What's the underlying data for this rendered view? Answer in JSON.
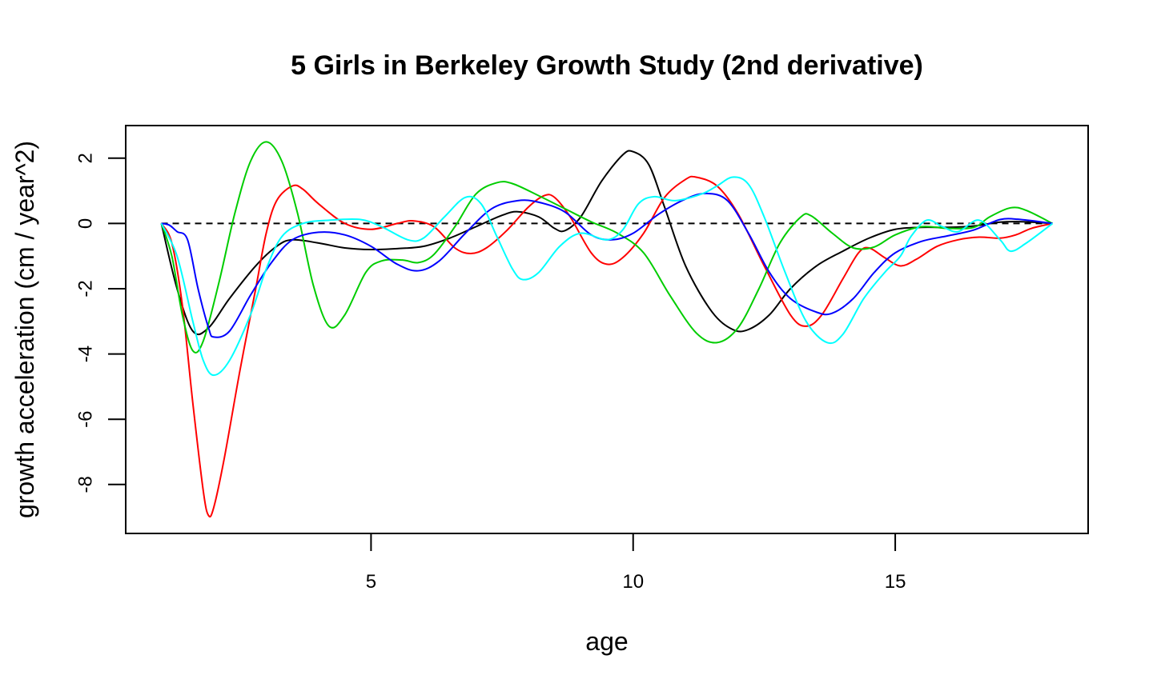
{
  "chart_data": {
    "type": "line",
    "title": "5 Girls in Berkeley Growth Study (2nd derivative)",
    "xlabel": "age",
    "ylabel": "growth acceleration (cm / year^2)",
    "xlim": [
      0.32,
      18.68
    ],
    "ylim": [
      -9.5,
      3.0
    ],
    "x_ticks": [
      5,
      10,
      15
    ],
    "x_tick_labels": [
      "5",
      "10",
      "15"
    ],
    "y_ticks": [
      -8,
      -6,
      -4,
      -2,
      0,
      2
    ],
    "y_tick_labels": [
      "-8",
      "-6",
      "-4",
      "-2",
      "0",
      "2"
    ],
    "grid": false,
    "legend": "none",
    "reference_line": {
      "y": 0,
      "style": "dashed",
      "color": "#000000"
    },
    "series": [
      {
        "color": "#000000",
        "points": [
          [
            1,
            0
          ],
          [
            1.3,
            -2
          ],
          [
            1.6,
            -3.3
          ],
          [
            1.9,
            -3.2
          ],
          [
            2.3,
            -2.3
          ],
          [
            2.8,
            -1.3
          ],
          [
            3.2,
            -0.7
          ],
          [
            3.5,
            -0.5
          ],
          [
            4.0,
            -0.6
          ],
          [
            4.5,
            -0.75
          ],
          [
            5.0,
            -0.8
          ],
          [
            5.5,
            -0.77
          ],
          [
            6.0,
            -0.7
          ],
          [
            6.5,
            -0.45
          ],
          [
            7.0,
            -0.1
          ],
          [
            7.5,
            0.25
          ],
          [
            7.8,
            0.36
          ],
          [
            8.2,
            0.2
          ],
          [
            8.5,
            -0.15
          ],
          [
            8.7,
            -0.22
          ],
          [
            9.0,
            0.2
          ],
          [
            9.4,
            1.3
          ],
          [
            9.8,
            2.1
          ],
          [
            10.0,
            2.2
          ],
          [
            10.3,
            1.8
          ],
          [
            10.6,
            0.5
          ],
          [
            11.0,
            -1.3
          ],
          [
            11.5,
            -2.7
          ],
          [
            11.9,
            -3.25
          ],
          [
            12.2,
            -3.25
          ],
          [
            12.6,
            -2.8
          ],
          [
            13.0,
            -2.0
          ],
          [
            13.5,
            -1.3
          ],
          [
            14.0,
            -0.85
          ],
          [
            14.5,
            -0.45
          ],
          [
            15.0,
            -0.18
          ],
          [
            15.5,
            -0.12
          ],
          [
            16.0,
            -0.12
          ],
          [
            16.5,
            -0.08
          ],
          [
            17.0,
            0.04
          ],
          [
            17.5,
            0.05
          ],
          [
            18.0,
            0
          ]
        ]
      },
      {
        "color": "#ff0000",
        "points": [
          [
            1,
            0
          ],
          [
            1.2,
            -0.6
          ],
          [
            1.4,
            -2.5
          ],
          [
            1.6,
            -5.5
          ],
          [
            1.8,
            -8.2
          ],
          [
            1.9,
            -8.95
          ],
          [
            2.0,
            -8.7
          ],
          [
            2.2,
            -7.2
          ],
          [
            2.5,
            -4.5
          ],
          [
            2.8,
            -2.0
          ],
          [
            3.0,
            -0.3
          ],
          [
            3.2,
            0.7
          ],
          [
            3.5,
            1.15
          ],
          [
            3.7,
            1.05
          ],
          [
            4.0,
            0.6
          ],
          [
            4.5,
            0.0
          ],
          [
            5.0,
            -0.18
          ],
          [
            5.5,
            0.0
          ],
          [
            5.8,
            0.08
          ],
          [
            6.2,
            -0.1
          ],
          [
            6.6,
            -0.75
          ],
          [
            6.9,
            -0.92
          ],
          [
            7.2,
            -0.75
          ],
          [
            7.6,
            -0.2
          ],
          [
            8.0,
            0.5
          ],
          [
            8.3,
            0.85
          ],
          [
            8.5,
            0.8
          ],
          [
            8.8,
            0.2
          ],
          [
            9.2,
            -0.9
          ],
          [
            9.5,
            -1.25
          ],
          [
            9.8,
            -1.05
          ],
          [
            10.2,
            -0.3
          ],
          [
            10.6,
            0.8
          ],
          [
            11.0,
            1.35
          ],
          [
            11.2,
            1.42
          ],
          [
            11.6,
            1.15
          ],
          [
            12.0,
            0.3
          ],
          [
            12.5,
            -1.3
          ],
          [
            13.0,
            -2.8
          ],
          [
            13.3,
            -3.15
          ],
          [
            13.6,
            -2.8
          ],
          [
            14.0,
            -1.7
          ],
          [
            14.3,
            -0.9
          ],
          [
            14.5,
            -0.75
          ],
          [
            14.8,
            -1.05
          ],
          [
            15.1,
            -1.3
          ],
          [
            15.4,
            -1.1
          ],
          [
            15.8,
            -0.7
          ],
          [
            16.2,
            -0.5
          ],
          [
            16.6,
            -0.42
          ],
          [
            17.0,
            -0.45
          ],
          [
            17.3,
            -0.35
          ],
          [
            17.6,
            -0.15
          ],
          [
            18.0,
            0
          ]
        ]
      },
      {
        "color": "#00cd00",
        "points": [
          [
            1,
            0
          ],
          [
            1.2,
            -1.0
          ],
          [
            1.4,
            -2.8
          ],
          [
            1.6,
            -3.9
          ],
          [
            1.8,
            -3.6
          ],
          [
            2.1,
            -1.8
          ],
          [
            2.4,
            0.3
          ],
          [
            2.7,
            1.9
          ],
          [
            3.0,
            2.5
          ],
          [
            3.3,
            1.9
          ],
          [
            3.6,
            0.3
          ],
          [
            3.9,
            -1.9
          ],
          [
            4.2,
            -3.15
          ],
          [
            4.5,
            -2.8
          ],
          [
            4.9,
            -1.5
          ],
          [
            5.2,
            -1.15
          ],
          [
            5.6,
            -1.12
          ],
          [
            5.9,
            -1.2
          ],
          [
            6.2,
            -0.95
          ],
          [
            6.6,
            -0.1
          ],
          [
            7.0,
            0.9
          ],
          [
            7.4,
            1.25
          ],
          [
            7.7,
            1.22
          ],
          [
            8.2,
            0.85
          ],
          [
            8.7,
            0.45
          ],
          [
            9.2,
            0.05
          ],
          [
            9.7,
            -0.3
          ],
          [
            10.2,
            -0.9
          ],
          [
            10.7,
            -2.2
          ],
          [
            11.2,
            -3.35
          ],
          [
            11.6,
            -3.65
          ],
          [
            12.0,
            -3.2
          ],
          [
            12.4,
            -2.0
          ],
          [
            12.8,
            -0.6
          ],
          [
            13.2,
            0.2
          ],
          [
            13.4,
            0.23
          ],
          [
            13.8,
            -0.3
          ],
          [
            14.2,
            -0.75
          ],
          [
            14.6,
            -0.72
          ],
          [
            15.0,
            -0.35
          ],
          [
            15.5,
            -0.1
          ],
          [
            16.0,
            -0.15
          ],
          [
            16.5,
            -0.12
          ],
          [
            16.8,
            0.2
          ],
          [
            17.2,
            0.48
          ],
          [
            17.5,
            0.4
          ],
          [
            18.0,
            0
          ]
        ]
      },
      {
        "color": "#0000ff",
        "points": [
          [
            1,
            0
          ],
          [
            1.15,
            -0.05
          ],
          [
            1.3,
            -0.25
          ],
          [
            1.5,
            -0.5
          ],
          [
            1.7,
            -2.0
          ],
          [
            1.9,
            -3.2
          ],
          [
            2.0,
            -3.48
          ],
          [
            2.3,
            -3.3
          ],
          [
            2.7,
            -2.2
          ],
          [
            3.1,
            -1.2
          ],
          [
            3.5,
            -0.5
          ],
          [
            4.0,
            -0.27
          ],
          [
            4.5,
            -0.35
          ],
          [
            5.0,
            -0.7
          ],
          [
            5.5,
            -1.25
          ],
          [
            5.9,
            -1.45
          ],
          [
            6.3,
            -1.15
          ],
          [
            6.8,
            -0.3
          ],
          [
            7.3,
            0.45
          ],
          [
            7.8,
            0.7
          ],
          [
            8.2,
            0.65
          ],
          [
            8.7,
            0.35
          ],
          [
            9.2,
            -0.35
          ],
          [
            9.6,
            -0.5
          ],
          [
            10.0,
            -0.3
          ],
          [
            10.5,
            0.3
          ],
          [
            11.0,
            0.75
          ],
          [
            11.4,
            0.92
          ],
          [
            11.8,
            0.7
          ],
          [
            12.2,
            -0.3
          ],
          [
            12.6,
            -1.5
          ],
          [
            13.0,
            -2.3
          ],
          [
            13.5,
            -2.72
          ],
          [
            13.8,
            -2.75
          ],
          [
            14.2,
            -2.3
          ],
          [
            14.6,
            -1.5
          ],
          [
            15.0,
            -0.9
          ],
          [
            15.5,
            -0.55
          ],
          [
            16.0,
            -0.38
          ],
          [
            16.5,
            -0.2
          ],
          [
            17.0,
            0.12
          ],
          [
            17.4,
            0.12
          ],
          [
            18.0,
            0
          ]
        ]
      },
      {
        "color": "#00ffff",
        "points": [
          [
            1,
            0
          ],
          [
            1.3,
            -1.0
          ],
          [
            1.6,
            -3.0
          ],
          [
            1.8,
            -4.2
          ],
          [
            2.0,
            -4.65
          ],
          [
            2.3,
            -4.2
          ],
          [
            2.7,
            -2.8
          ],
          [
            3.0,
            -1.4
          ],
          [
            3.3,
            -0.4
          ],
          [
            3.7,
            0.0
          ],
          [
            4.2,
            0.1
          ],
          [
            4.8,
            0.12
          ],
          [
            5.2,
            -0.1
          ],
          [
            5.7,
            -0.5
          ],
          [
            6.0,
            -0.45
          ],
          [
            6.4,
            0.2
          ],
          [
            6.8,
            0.8
          ],
          [
            7.1,
            0.6
          ],
          [
            7.4,
            -0.4
          ],
          [
            7.7,
            -1.4
          ],
          [
            7.9,
            -1.72
          ],
          [
            8.2,
            -1.5
          ],
          [
            8.6,
            -0.7
          ],
          [
            9.0,
            -0.3
          ],
          [
            9.5,
            -0.5
          ],
          [
            9.8,
            -0.2
          ],
          [
            10.1,
            0.6
          ],
          [
            10.4,
            0.82
          ],
          [
            10.8,
            0.7
          ],
          [
            11.3,
            0.9
          ],
          [
            11.6,
            1.15
          ],
          [
            11.9,
            1.42
          ],
          [
            12.2,
            1.2
          ],
          [
            12.5,
            0.2
          ],
          [
            12.9,
            -1.5
          ],
          [
            13.3,
            -3.0
          ],
          [
            13.7,
            -3.65
          ],
          [
            14.0,
            -3.4
          ],
          [
            14.4,
            -2.3
          ],
          [
            14.8,
            -1.5
          ],
          [
            15.1,
            -1.0
          ],
          [
            15.3,
            -0.4
          ],
          [
            15.6,
            0.1
          ],
          [
            15.9,
            -0.1
          ],
          [
            16.2,
            -0.25
          ],
          [
            16.6,
            0.1
          ],
          [
            17.0,
            -0.5
          ],
          [
            17.2,
            -0.85
          ],
          [
            17.5,
            -0.6
          ],
          [
            18.0,
            0
          ]
        ]
      }
    ]
  }
}
